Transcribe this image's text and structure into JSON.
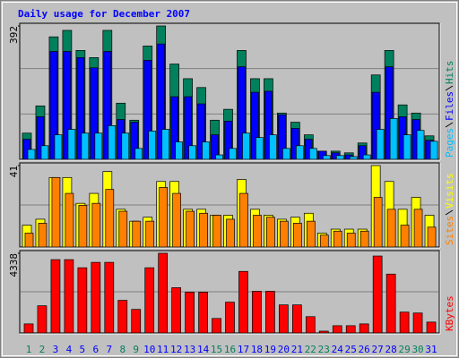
{
  "chart_data": [
    {
      "type": "bar",
      "title": "Daily usage for December 2007",
      "ylim": [
        0,
        392
      ],
      "yticks": [
        392
      ],
      "grid": true,
      "series": [
        {
          "name": "Hits",
          "color": "#00805c",
          "values": [
            77,
            157,
            360,
            379,
            320,
            299,
            379,
            165,
            115,
            333,
            392,
            280,
            237,
            211,
            115,
            147,
            320,
            237,
            237,
            136,
            109,
            72,
            24,
            24,
            19,
            48,
            248,
            320,
            160,
            136,
            69
          ]
        },
        {
          "name": "Files",
          "color": "#0000ff",
          "values": [
            59,
            125,
            317,
            317,
            299,
            269,
            317,
            117,
            109,
            291,
            339,
            184,
            184,
            163,
            72,
            112,
            272,
            197,
            200,
            131,
            91,
            59,
            24,
            19,
            13,
            40,
            197,
            272,
            125,
            117,
            56
          ]
        },
        {
          "name": "Pages",
          "color": "#00c0ff",
          "values": [
            29,
            40,
            72,
            88,
            77,
            77,
            99,
            77,
            32,
            83,
            88,
            51,
            40,
            51,
            13,
            32,
            77,
            64,
            72,
            32,
            40,
            32,
            11,
            11,
            8,
            13,
            88,
            120,
            72,
            85,
            53
          ]
        }
      ]
    },
    {
      "type": "bar",
      "ylim": [
        0,
        41
      ],
      "yticks": [
        41
      ],
      "grid": true,
      "series": [
        {
          "name": "Visits",
          "color": "#ffff00",
          "values": [
            11,
            14,
            35,
            35,
            22,
            27,
            38,
            19,
            13,
            15,
            33,
            33,
            19,
            19,
            16,
            16,
            34,
            19,
            16,
            14,
            15,
            17,
            7,
            9,
            9,
            9,
            41,
            33,
            19,
            25,
            16
          ]
        },
        {
          "name": "Sites",
          "color": "#ff8000",
          "values": [
            7,
            12,
            35,
            27,
            21,
            22,
            29,
            18,
            13,
            13,
            30,
            27,
            18,
            17,
            16,
            14,
            27,
            16,
            15,
            13,
            12,
            13,
            6,
            8,
            7,
            8,
            25,
            19,
            11,
            19,
            10
          ]
        }
      ]
    },
    {
      "type": "bar",
      "ylim": [
        0,
        4338
      ],
      "yticks": [
        4338
      ],
      "grid": true,
      "categories": [
        "1",
        "2",
        "3",
        "4",
        "5",
        "6",
        "7",
        "8",
        "9",
        "10",
        "11",
        "12",
        "13",
        "14",
        "15",
        "16",
        "17",
        "18",
        "19",
        "20",
        "21",
        "22",
        "23",
        "24",
        "25",
        "26",
        "27",
        "28",
        "29",
        "30",
        "31"
      ],
      "category_colors": [
        "#00805c",
        "#00805c",
        "#0000ff",
        "#0000ff",
        "#0000ff",
        "#0000ff",
        "#0000ff",
        "#00805c",
        "#00805c",
        "#0000ff",
        "#0000ff",
        "#0000ff",
        "#0000ff",
        "#0000ff",
        "#00805c",
        "#00805c",
        "#0000ff",
        "#0000ff",
        "#0000ff",
        "#0000ff",
        "#0000ff",
        "#00805c",
        "#00805c",
        "#0000ff",
        "#0000ff",
        "#0000ff",
        "#0000ff",
        "#0000ff",
        "#00805c",
        "#00805c",
        "#0000ff"
      ],
      "series": [
        {
          "name": "KBytes",
          "color": "#ff0000",
          "values": [
            493,
            1479,
            3993,
            3993,
            3550,
            3845,
            3845,
            1775,
            1282,
            3550,
            4338,
            2465,
            2219,
            2219,
            789,
            1676,
            3352,
            2268,
            2268,
            1528,
            1528,
            887,
            99,
            394,
            394,
            493,
            4190,
            3205,
            1134,
            1085,
            592
          ]
        }
      ]
    }
  ]
}
